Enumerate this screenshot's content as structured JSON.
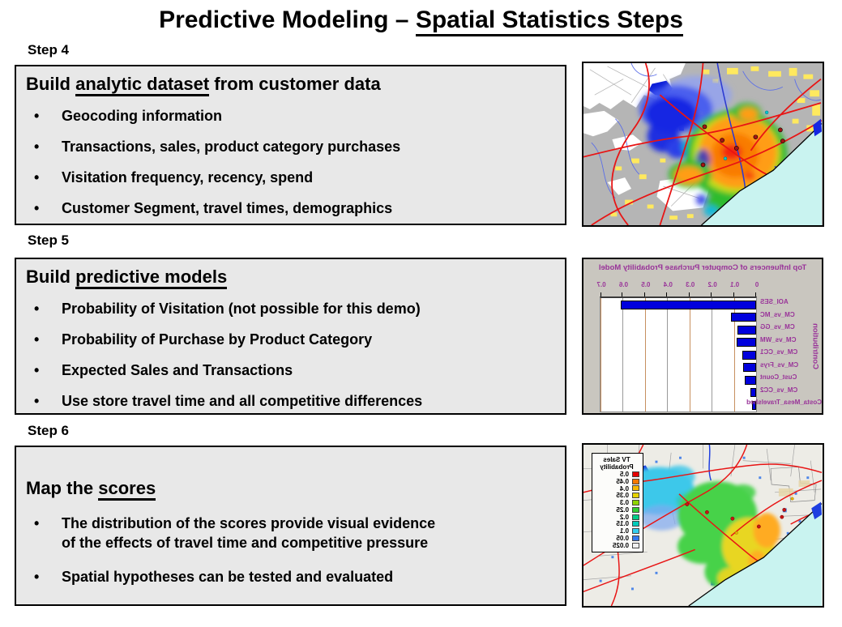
{
  "title": {
    "prefix": "Predictive Modeling – ",
    "underlined": "Spatial Statistics Steps"
  },
  "sections": [
    {
      "step": "Step 4",
      "heading": {
        "before": "Build ",
        "underlined": "analytic dataset",
        "after": " from customer data"
      },
      "bullets": [
        "Geocoding information",
        "Transactions, sales, product category purchases",
        "Visitation frequency, recency, spend",
        "Customer Segment, travel times, demographics"
      ]
    },
    {
      "step": "Step 5",
      "heading": {
        "before": "Build ",
        "underlined": "predictive models",
        "after": ""
      },
      "bullets": [
        "Probability of Visitation (not possible for this demo)",
        "Probability of Purchase by Product Category",
        "Expected Sales and Transactions",
        "Use store travel time and all competitive differences"
      ]
    },
    {
      "step": "Step 6",
      "heading": {
        "before": "Map the ",
        "underlined": "scores",
        "after": ""
      },
      "bullets": [
        "The distribution of the scores provide visual evidence\nof the effects of travel time and competitive pressure",
        "Spatial hypotheses can be tested and evaluated"
      ]
    }
  ],
  "chart_data": {
    "type": "bar",
    "orientation": "horizontal",
    "mirrored_rendering": true,
    "title": "Top Influencers of Computer Purchase Probability Model",
    "ylabel": "Contribution",
    "categories": [
      "AOI_SES",
      "CM_vs_MC",
      "CM_vs_GG",
      "CM_vs_WM",
      "CM_vs_CC1",
      "CM_vs_Frys",
      "Cust_Count",
      "CM_vs_CC2",
      "Costa_Mesa_Travelshed"
    ],
    "values": [
      0.6,
      0.105,
      0.075,
      0.08,
      0.055,
      0.05,
      0.045,
      0.018,
      0.012
    ],
    "xlim": [
      0,
      0.7
    ],
    "xticks": [
      0,
      0.1,
      0.2,
      0.3,
      0.4,
      0.5,
      0.6,
      0.7
    ],
    "bar_color": "#0000dd",
    "label_color": "#993399",
    "gridline_colors": [
      "#c79060",
      "#9a9a9a"
    ],
    "legend_position": "none",
    "grid": true
  },
  "map_legend": {
    "title_lines": [
      "TV Sales",
      "Probability"
    ],
    "entries": [
      {
        "value": "0.5",
        "color": "#e60000"
      },
      {
        "value": "0.45",
        "color": "#f57900"
      },
      {
        "value": "0.4",
        "color": "#f5b800"
      },
      {
        "value": "0.35",
        "color": "#e6d200"
      },
      {
        "value": "0.3",
        "color": "#8fd400"
      },
      {
        "value": "0.25",
        "color": "#33cc33"
      },
      {
        "value": "0.2",
        "color": "#00cc88"
      },
      {
        "value": "0.15",
        "color": "#00ccbb"
      },
      {
        "value": "0.1",
        "color": "#33ccee"
      },
      {
        "value": "0.05",
        "color": "#3377ee"
      },
      {
        "value": "0.025",
        "color": "#f0f0f0"
      }
    ]
  },
  "colors": {
    "box_background": "#e8e8e8",
    "chart_background": "#c9c6bf",
    "accent_purple": "#993399",
    "ocean": "#c9f3f0",
    "heat_red": "#f3270a",
    "heat_orange": "#ff9d13",
    "heat_green": "#2fbb2f",
    "heat_blue": "#1526e3",
    "road_red": "#e81414"
  }
}
